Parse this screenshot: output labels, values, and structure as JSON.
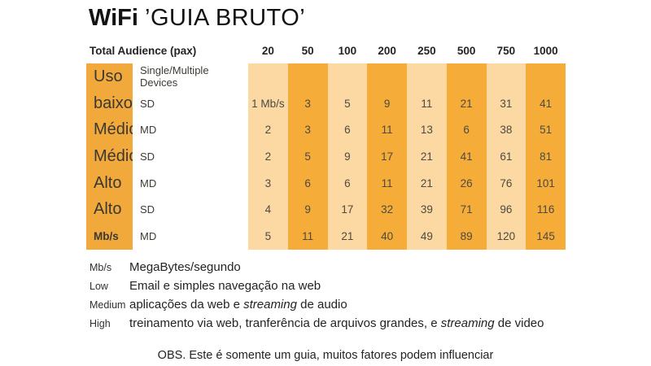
{
  "title": {
    "brand": "WiFi",
    "quoted": "’GUIA BRUTO’"
  },
  "table": {
    "corner_header": "Total Audience (pax)",
    "audience_columns": [
      "20",
      "50",
      "100",
      "200",
      "250",
      "500",
      "750",
      "1000"
    ],
    "rows": [
      {
        "label": "Uso",
        "device": "Single/Multiple Devices",
        "values": [
          "",
          "",
          "",
          "",
          "",
          "",
          "",
          ""
        ]
      },
      {
        "label": "baixo",
        "device": "SD",
        "values": [
          "1 Mb/s",
          "3",
          "5",
          "9",
          "11",
          "21",
          "31",
          "41"
        ]
      },
      {
        "label": "Médio",
        "device": "MD",
        "values": [
          "2",
          "3",
          "6",
          "11",
          "13",
          "6",
          "38",
          "51"
        ]
      },
      {
        "label": "Médio",
        "device": "SD",
        "values": [
          "2",
          "5",
          "9",
          "17",
          "21",
          "41",
          "61",
          "81"
        ]
      },
      {
        "label": "Alto",
        "device": "MD",
        "values": [
          "3",
          "6",
          "6",
          "11",
          "21",
          "26",
          "76",
          "101"
        ]
      },
      {
        "label": "Alto",
        "device": "SD",
        "values": [
          "4",
          "9",
          "17",
          "32",
          "39",
          "71",
          "96",
          "116"
        ]
      },
      {
        "label": "Mb/s",
        "device": "MD",
        "values": [
          "5",
          "11",
          "21",
          "40",
          "49",
          "89",
          "120",
          "145"
        ]
      }
    ]
  },
  "legend": {
    "items": [
      {
        "term": "Mb/s",
        "segments": [
          {
            "t": "MegaBytes/segundo",
            "i": false
          }
        ]
      },
      {
        "term": "Low",
        "segments": [
          {
            "t": "Email e simples navegação na web",
            "i": false
          }
        ]
      },
      {
        "term": "Medium",
        "segments": [
          {
            "t": "aplicações da web e ",
            "i": false
          },
          {
            "t": "streaming",
            "i": true
          },
          {
            "t": " de audio",
            "i": false
          }
        ]
      },
      {
        "term": "High",
        "segments": [
          {
            "t": "treinamento via web, tranferência de arquivos grandes, e ",
            "i": false
          },
          {
            "t": "streaming",
            "i": true
          },
          {
            "t": " de video",
            "i": false
          }
        ]
      }
    ]
  },
  "note": "OBS. Este é somente um guia, muitos fatores podem influenciar",
  "colors": {
    "column_light": "#FCD8A2",
    "column_dark": "#F5AC38",
    "label_column": "#F2A93C",
    "text": "#3a3832"
  }
}
